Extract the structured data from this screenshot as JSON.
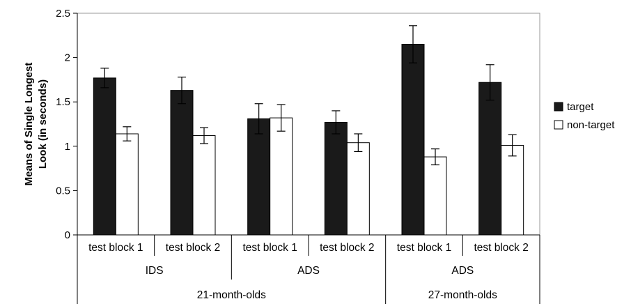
{
  "chart_data": {
    "type": "bar",
    "title": "",
    "ylabel_lines": [
      "Means of Single Longest",
      "Look (in seconds)"
    ],
    "ylim": [
      0,
      2.5
    ],
    "yticks": [
      "0",
      "0.5",
      "1",
      "1.5",
      "2",
      "2.5"
    ],
    "grid": false,
    "legend_position": "right",
    "categories": [
      "test block 1",
      "test block 2",
      "test block 1",
      "test block 2",
      "test block 1",
      "test block 2"
    ],
    "speech_groups": [
      {
        "label": "IDS",
        "span": 2
      },
      {
        "label": "ADS",
        "span": 2
      },
      {
        "label": "ADS",
        "span": 2
      }
    ],
    "age_groups": [
      {
        "label": "21-month-olds",
        "span": 4
      },
      {
        "label": "27-month-olds",
        "span": 2
      }
    ],
    "series": [
      {
        "name": "target",
        "color": "#1a1a1a",
        "values": [
          1.77,
          1.63,
          1.31,
          1.27,
          2.15,
          1.72
        ],
        "error": [
          0.11,
          0.15,
          0.17,
          0.13,
          0.21,
          0.2
        ]
      },
      {
        "name": "non-target",
        "color": "#ffffff",
        "values": [
          1.14,
          1.12,
          1.32,
          1.04,
          0.88,
          1.01
        ],
        "error": [
          0.08,
          0.09,
          0.15,
          0.1,
          0.09,
          0.12
        ]
      }
    ]
  }
}
